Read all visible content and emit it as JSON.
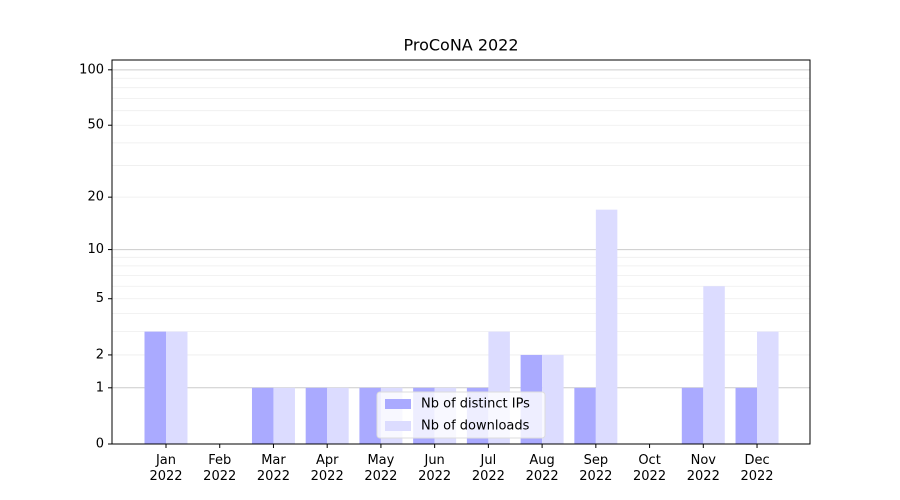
{
  "chart_data": {
    "type": "bar",
    "title": "ProCoNA 2022",
    "categories": [
      "Jan 2022",
      "Feb 2022",
      "Mar 2022",
      "Apr 2022",
      "May 2022",
      "Jun 2022",
      "Jul 2022",
      "Aug 2022",
      "Sep 2022",
      "Oct 2022",
      "Nov 2022",
      "Dec 2022"
    ],
    "series": [
      {
        "name": "Nb of distinct IPs",
        "color": "#aaaaff",
        "values": [
          3,
          0,
          1,
          1,
          1,
          1,
          1,
          2,
          1,
          0,
          1,
          1
        ]
      },
      {
        "name": "Nb of downloads",
        "color": "#dcdcff",
        "values": [
          3,
          0,
          1,
          1,
          1,
          1,
          3,
          2,
          17,
          0,
          6,
          3
        ]
      }
    ],
    "yscale": "log1p",
    "ylim": [
      0,
      113
    ],
    "yticks": [
      0,
      1,
      2,
      5,
      10,
      20,
      50,
      100
    ],
    "ygrid_major": [
      1,
      10,
      100
    ],
    "ygrid_minor": [
      2,
      3,
      4,
      5,
      6,
      7,
      8,
      9,
      20,
      30,
      40,
      50,
      60,
      70,
      80,
      90
    ],
    "legend": "lower center"
  }
}
